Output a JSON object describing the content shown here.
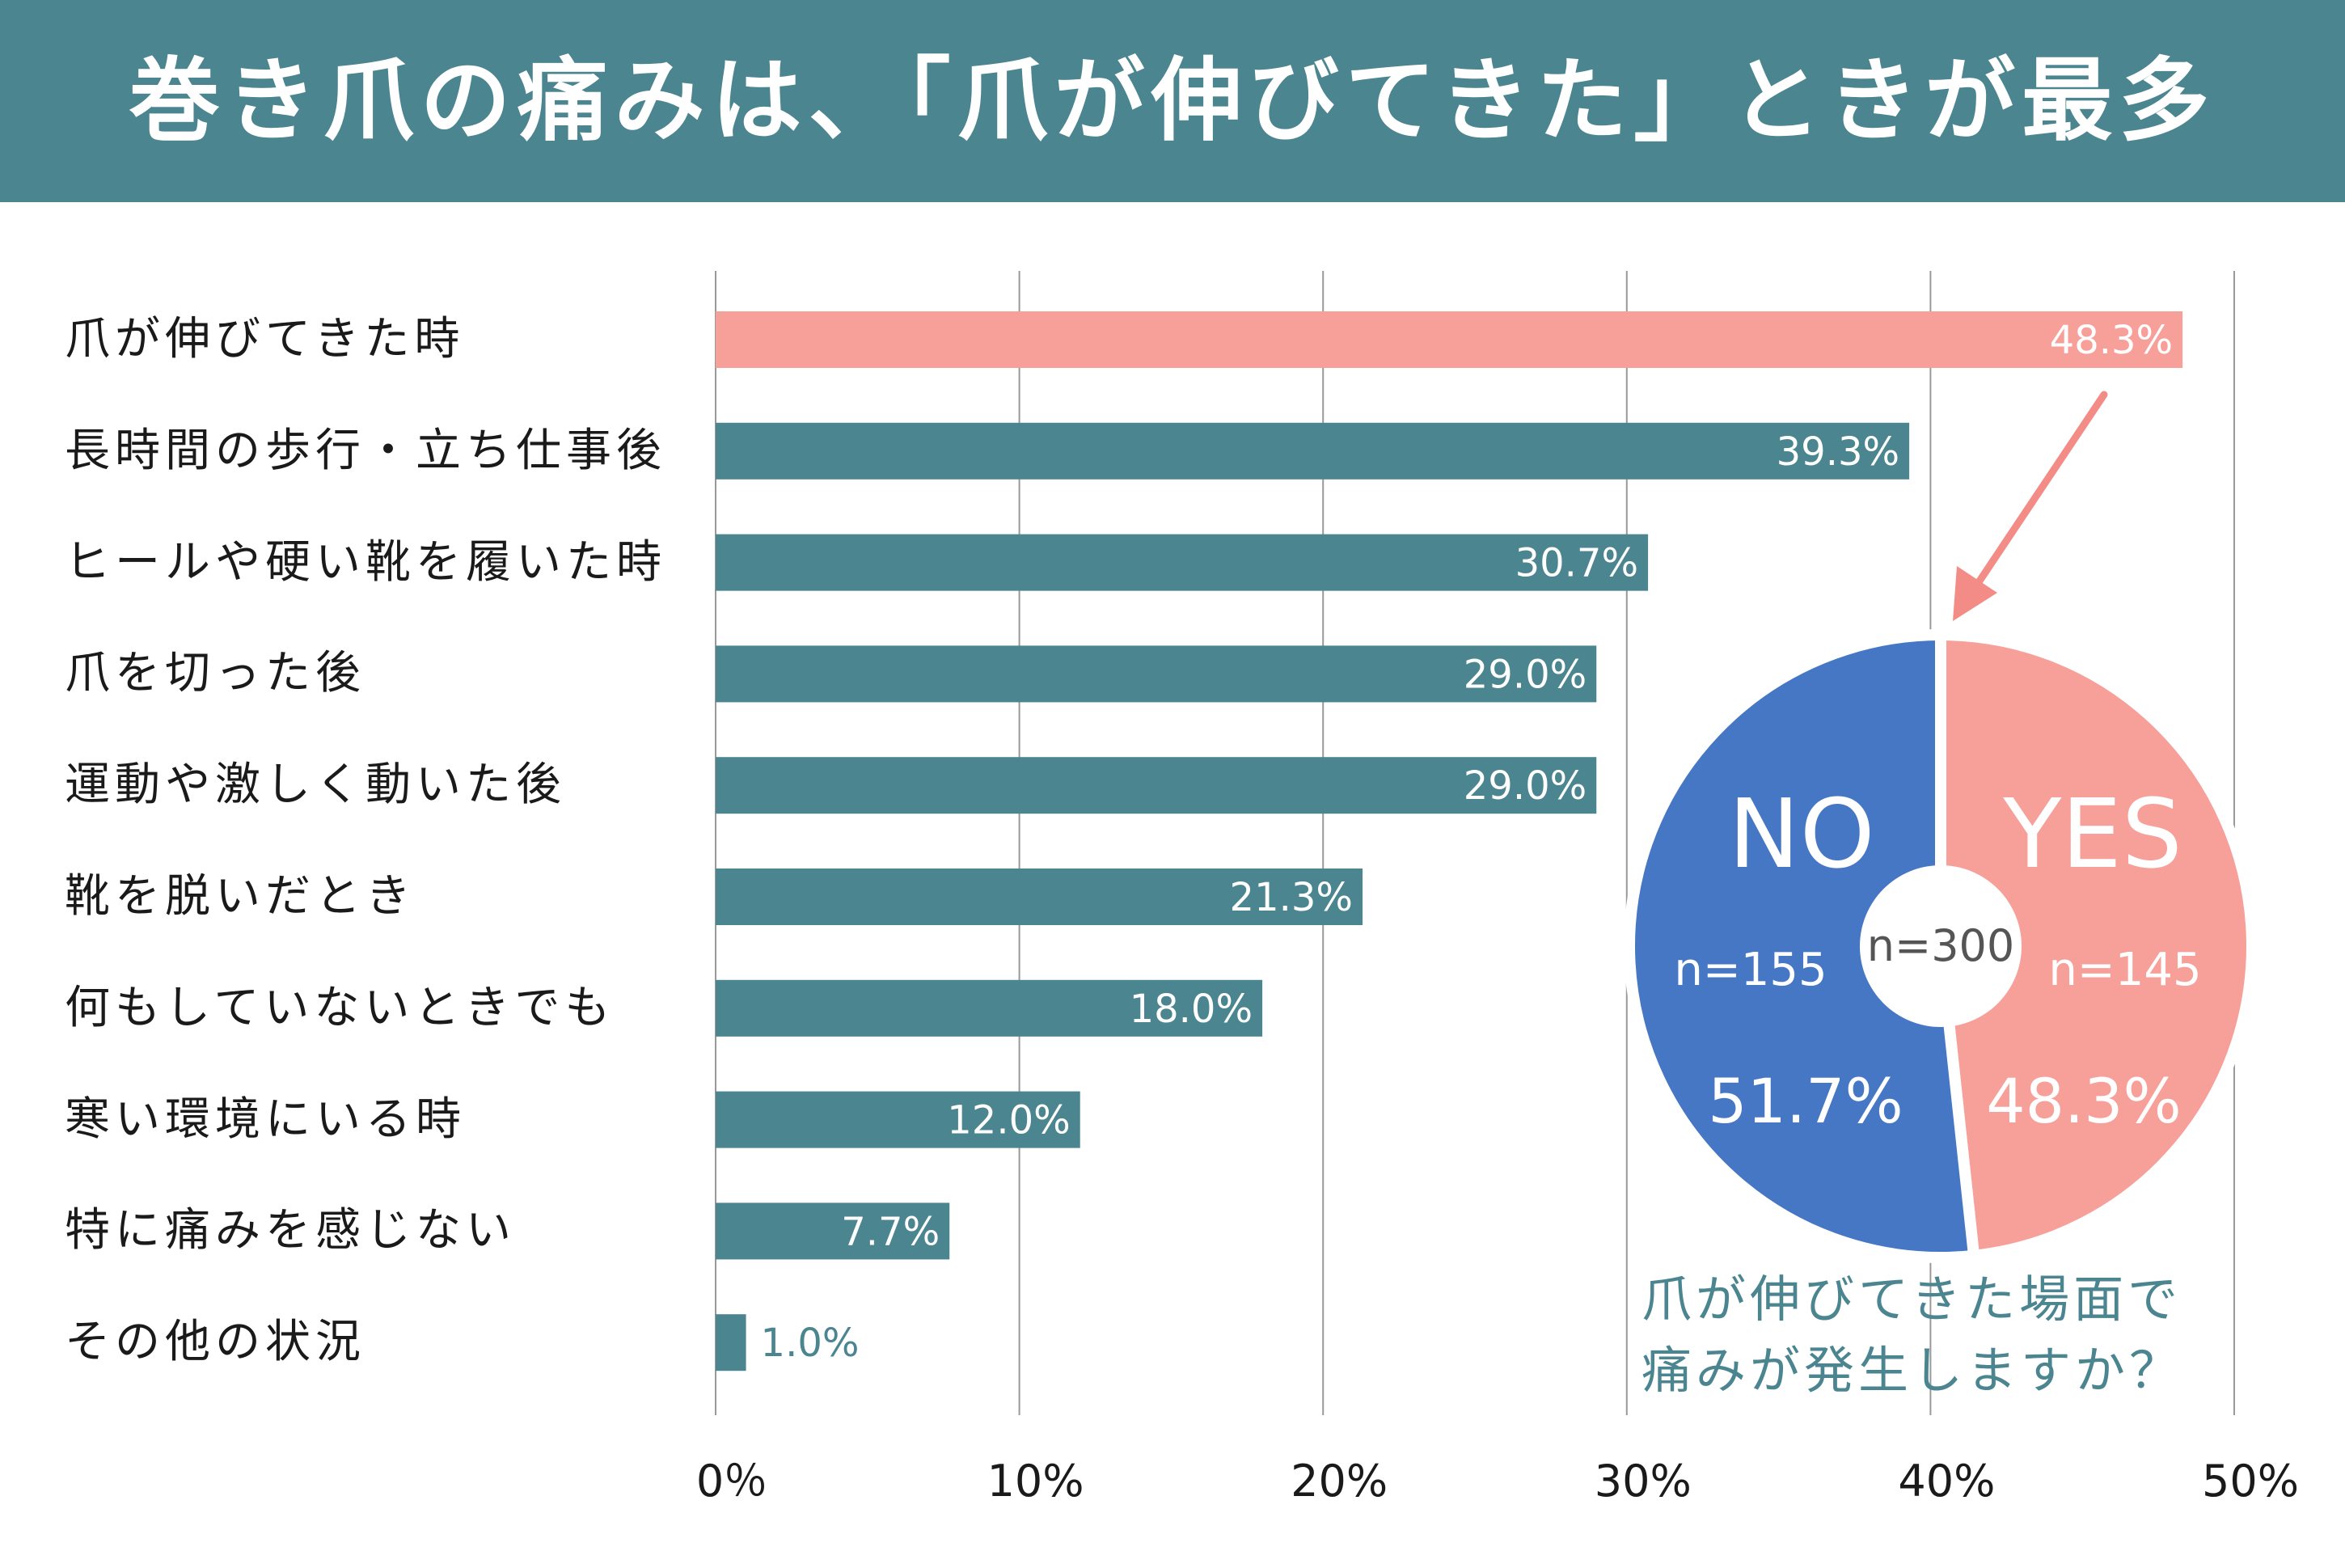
{
  "header": {
    "title": "巻き爪の痛みは、「爪が伸びてきた」ときが最多"
  },
  "colors": {
    "header_bg": "#4b8590",
    "bar_default": "#4b8590",
    "bar_highlight": "#f7a09a",
    "pie_no": "#4577c5",
    "pie_yes": "#f7a09a",
    "grid": "#999999",
    "arrow": "#f38c86"
  },
  "chart_data": [
    {
      "type": "bar",
      "orientation": "horizontal",
      "categories": [
        "爪が伸びてきた時",
        "長時間の歩行・立ち仕事後",
        "ヒールや硬い靴を履いた時",
        "爪を切った後",
        "運動や激しく動いた後",
        "靴を脱いだとき",
        "何もしていないときでも",
        "寒い環境にいる時",
        "特に痛みを感じない",
        "その他の状況"
      ],
      "values": [
        48.3,
        39.3,
        30.7,
        29.0,
        29.0,
        21.3,
        18.0,
        12.0,
        7.7,
        1.0
      ],
      "value_labels": [
        "48.3%",
        "39.3%",
        "30.7%",
        "29.0%",
        "29.0%",
        "21.3%",
        "18.0%",
        "12.0%",
        "7.7%",
        "1.0%"
      ],
      "highlight_index": 0,
      "xlim": [
        0,
        50
      ],
      "x_ticks": [
        0,
        10,
        20,
        30,
        40,
        50
      ],
      "x_tick_labels": [
        "0％",
        "10%",
        "20%",
        "30%",
        "40%",
        "50%"
      ],
      "grid": true
    },
    {
      "type": "pie",
      "title": "爪が伸びてきた場面で痛みが発生しますか？",
      "total_label": "n=300",
      "slices": [
        {
          "name": "YES",
          "n_label": "n=145",
          "value": 48.3,
          "pct_label": "48.3%"
        },
        {
          "name": "NO",
          "n_label": "n=155",
          "value": 51.7,
          "pct_label": "51.7%"
        }
      ]
    }
  ],
  "pie_caption": {
    "line1": "爪が伸びてきた場面で",
    "line2": "痛みが発生しますか？"
  }
}
